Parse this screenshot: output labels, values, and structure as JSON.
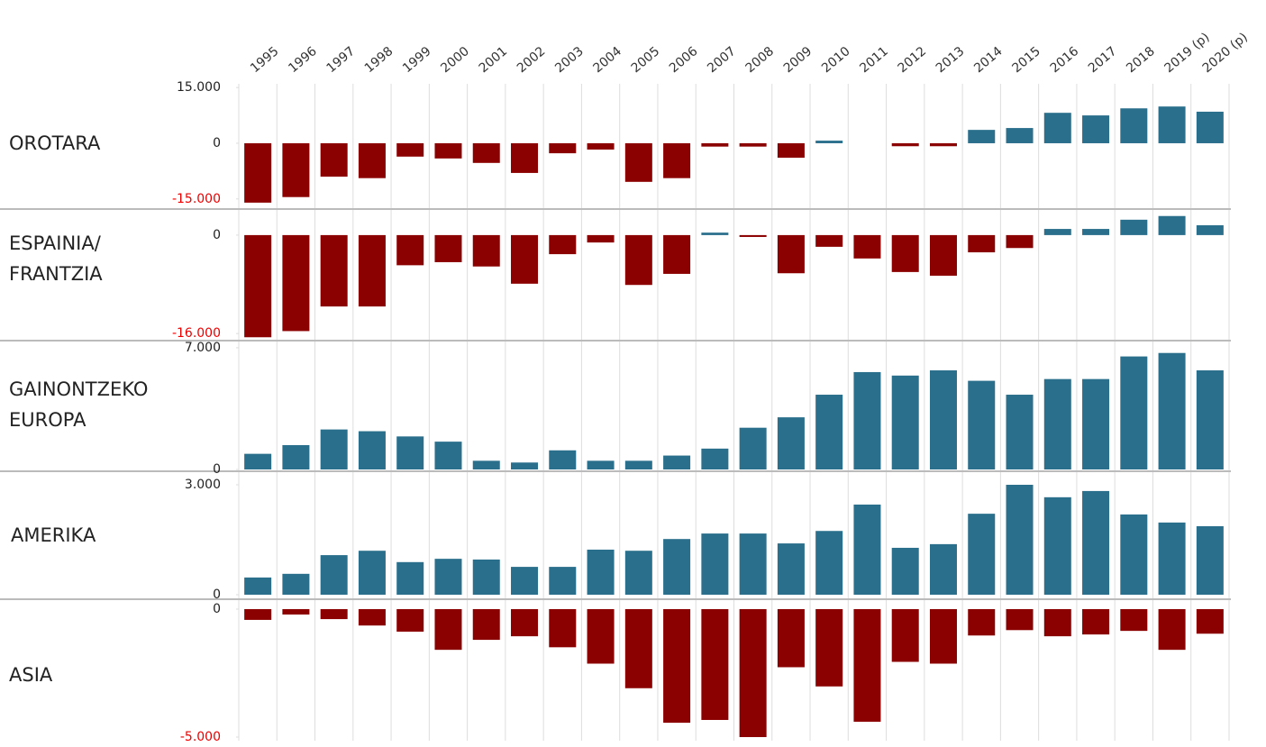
{
  "chart_data": [
    {
      "type": "bar",
      "title": [
        "OROTARA"
      ],
      "categories": [
        "1995",
        "1996",
        "1997",
        "1998",
        "1999",
        "2000",
        "2001",
        "2002",
        "2003",
        "2004",
        "2005",
        "2006",
        "2007",
        "2008",
        "2009",
        "2010",
        "2011",
        "2012",
        "2013",
        "2014",
        "2015",
        "2016",
        "2017",
        "2018",
        "2019 (p)",
        "2020 (p)"
      ],
      "values": [
        -16000,
        -14500,
        -9000,
        -9400,
        -3600,
        -4100,
        -5300,
        -8000,
        -2700,
        -1700,
        -10400,
        -9400,
        -900,
        -900,
        -3900,
        700,
        0,
        -800,
        -800,
        3600,
        4100,
        8200,
        7500,
        9400,
        9900,
        8500
      ],
      "ylim": [
        -17000,
        16500
      ],
      "yticks": [
        {
          "value": -15000,
          "label": "-15.000"
        },
        0,
        {
          "value": 15000,
          "label": "15.000"
        }
      ],
      "colors": {
        "positive": "#2a6f8c",
        "negative": "#8b0000"
      }
    },
    {
      "type": "bar",
      "title": [
        "ESPAINIA/",
        "FRANTZIA"
      ],
      "values": [
        -16600,
        -15600,
        -11600,
        -11600,
        -4900,
        -4400,
        -5100,
        -7900,
        -3100,
        -1200,
        -8100,
        -6300,
        400,
        -300,
        -6200,
        -1900,
        -3800,
        -6000,
        -6600,
        -2800,
        -2100,
        1000,
        1000,
        2500,
        3100,
        1600
      ],
      "ylim": [
        -17000,
        3500
      ],
      "yticks": [
        {
          "value": -16000,
          "label": "-16.000"
        },
        0
      ],
      "colors": {
        "positive": "#2a6f8c",
        "negative": "#8b0000"
      }
    },
    {
      "type": "bar",
      "title": [
        "GAINONTZEKO",
        "EUROPA"
      ],
      "values": [
        900,
        1400,
        2300,
        2200,
        1900,
        1600,
        500,
        400,
        1100,
        500,
        500,
        800,
        1200,
        2400,
        3000,
        4300,
        5600,
        5400,
        5700,
        5100,
        4300,
        5200,
        5200,
        6500,
        6700,
        5700
      ],
      "ylim": [
        0,
        7100
      ],
      "yticks": [
        0,
        {
          "value": 7000,
          "label": "7.000"
        }
      ],
      "colors": {
        "positive": "#2a6f8c",
        "negative": "#8b0000"
      }
    },
    {
      "type": "bar",
      "title": [
        "AMERIKA"
      ],
      "values": [
        470,
        570,
        1080,
        1200,
        890,
        980,
        960,
        760,
        760,
        1230,
        1200,
        1520,
        1670,
        1670,
        1400,
        1740,
        2460,
        1280,
        1380,
        2210,
        3000,
        2660,
        2830,
        2190,
        1970,
        1870
      ],
      "ylim": [
        0,
        3000
      ],
      "yticks": [
        0,
        {
          "value": 3000,
          "label": "3.000"
        }
      ],
      "colors": {
        "positive": "#2a6f8c",
        "negative": "#8b0000"
      }
    },
    {
      "type": "bar",
      "title": [
        "ASIA"
      ],
      "values": [
        -420,
        -210,
        -390,
        -640,
        -880,
        -1590,
        -1200,
        -1060,
        -1490,
        -2130,
        -3090,
        -4440,
        -4330,
        -5000,
        -2270,
        -3020,
        -4400,
        -2060,
        -2130,
        -1030,
        -820,
        -1060,
        -990,
        -850,
        -1590,
        -960
      ],
      "ylim": [
        -5000,
        0
      ],
      "yticks": [
        {
          "value": -5000,
          "label": "-5.000"
        },
        0
      ],
      "colors": {
        "positive": "#2a6f8c",
        "negative": "#8b0000"
      }
    }
  ]
}
